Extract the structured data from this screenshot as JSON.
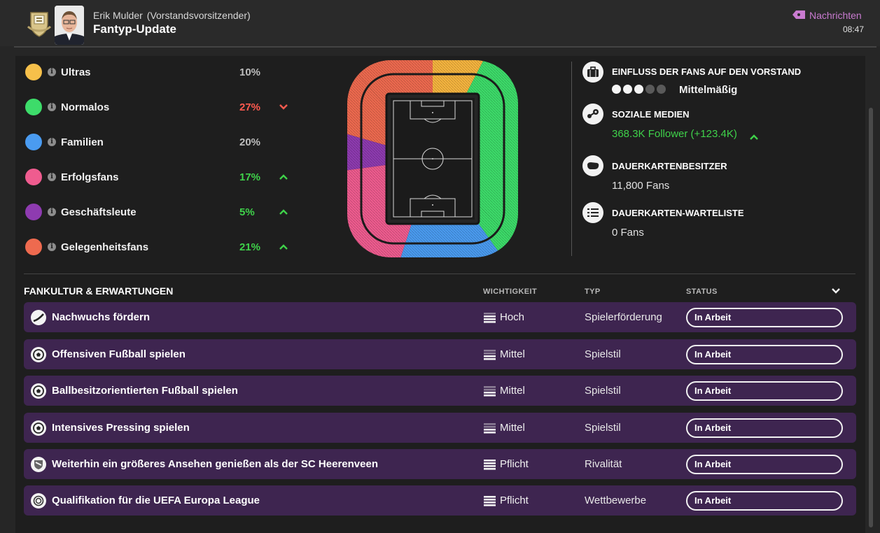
{
  "header": {
    "sender_name": "Erik Mulder",
    "sender_role": "(Vorstandsvorsitzender)",
    "subject": "Fantyp-Update",
    "inbox_label": "Nachrichten",
    "time": "08:47",
    "inbox_color": "#c97bd0"
  },
  "fan_groups": [
    {
      "name": "Ultras",
      "percent": "10%",
      "color": "#f6c04a",
      "pct_color": "#bdbdbd",
      "trend": "none"
    },
    {
      "name": "Normalos",
      "percent": "27%",
      "color": "#3ddc6a",
      "pct_color": "#ff5a4f",
      "trend": "down"
    },
    {
      "name": "Familien",
      "percent": "20%",
      "color": "#4a9bf0",
      "pct_color": "#bdbdbd",
      "trend": "none"
    },
    {
      "name": "Erfolgsfans",
      "percent": "17%",
      "color": "#ef5c8f",
      "pct_color": "#3fd24a",
      "trend": "up"
    },
    {
      "name": "Geschäftsleute",
      "percent": "5%",
      "color": "#8e3bb0",
      "pct_color": "#3fd24a",
      "trend": "up"
    },
    {
      "name": "Gelegenheitsfans",
      "percent": "21%",
      "color": "#ee6a4f",
      "pct_color": "#3fd24a",
      "trend": "up"
    }
  ],
  "stadium_sections": [
    {
      "group": "Gelegenheitsfans",
      "side": "top-left"
    },
    {
      "group": "Ultras",
      "side": "top-right"
    },
    {
      "group": "Normalos",
      "side": "right"
    },
    {
      "group": "Geschäftsleute",
      "side": "left-middle"
    },
    {
      "group": "Erfolgsfans",
      "side": "bottom-left"
    },
    {
      "group": "Familien",
      "side": "bottom"
    }
  ],
  "info": {
    "influence": {
      "title": "EINFLUSS DER FANS AUF DEN VORSTAND",
      "value": "Mittelmäßig",
      "pips_filled": 3,
      "pips_total": 5,
      "icon": "briefcase-icon"
    },
    "social": {
      "title": "SOZIALE MEDIEN",
      "value": "368.3K Follower (+123.4K)",
      "trend": "up",
      "value_color": "#3fd24a",
      "icon": "social-network-icon"
    },
    "season_tickets": {
      "title": "DAUERKARTENBESITZER",
      "value": "11,800 Fans",
      "icon": "ticket-icon"
    },
    "waitlist": {
      "title": "DAUERKARTEN-WARTELISTE",
      "value": "0 Fans",
      "icon": "list-icon"
    }
  },
  "table": {
    "title": "FANKULTUR & ERWARTUNGEN",
    "columns": [
      "WICHTIGKEIT",
      "TYP",
      "STATUS"
    ],
    "rows": [
      {
        "name": "Nachwuchs fördern",
        "importance": "Hoch",
        "level": 3,
        "type": "Spielerförderung",
        "status": "In Arbeit",
        "icon": "growth-icon"
      },
      {
        "name": "Offensiven Fußball spielen",
        "importance": "Mittel",
        "level": 2,
        "type": "Spielstil",
        "status": "In Arbeit",
        "icon": "football-icon"
      },
      {
        "name": "Ballbesitzorientierten Fußball spielen",
        "importance": "Mittel",
        "level": 2,
        "type": "Spielstil",
        "status": "In Arbeit",
        "icon": "football-icon"
      },
      {
        "name": "Intensives Pressing spielen",
        "importance": "Mittel",
        "level": 2,
        "type": "Spielstil",
        "status": "In Arbeit",
        "icon": "football-icon"
      },
      {
        "name": "Weiterhin ein größeres Ansehen genießen als der SC Heerenveen",
        "importance": "Pflicht",
        "level": 4,
        "type": "Rivalität",
        "status": "In Arbeit",
        "icon": "rival-crest-icon"
      },
      {
        "name": "Qualifikation für die UEFA Europa League",
        "importance": "Pflicht",
        "level": 4,
        "type": "Wettbewerbe",
        "status": "In Arbeit",
        "icon": "competition-icon"
      }
    ]
  }
}
